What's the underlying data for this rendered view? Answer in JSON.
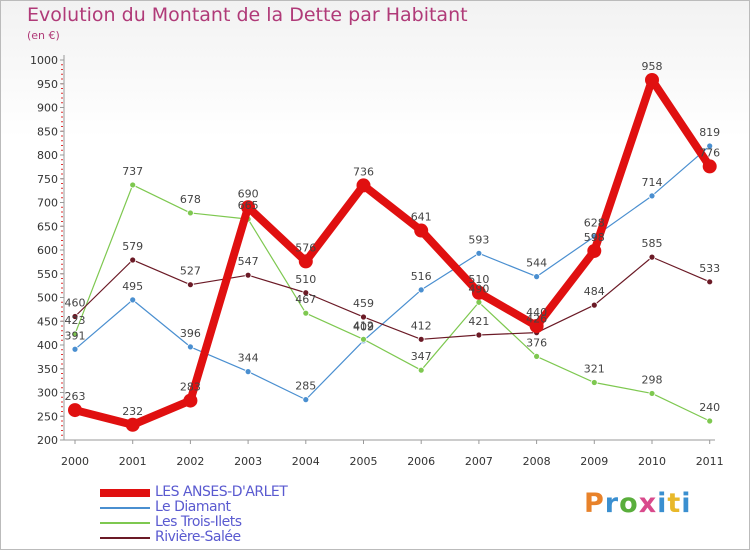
{
  "title": "Evolution du Montant de la Dette par Habitant",
  "subtitle": "(en €)",
  "logo_text": "Proxiti",
  "chart_data": {
    "type": "line",
    "title": "Evolution du Montant de la Dette par Habitant",
    "subtitle": "(en €)",
    "xlabel": "",
    "ylabel": "",
    "ylim": [
      200,
      1000
    ],
    "yticks": [
      200,
      250,
      300,
      350,
      400,
      450,
      500,
      550,
      600,
      650,
      700,
      750,
      800,
      850,
      900,
      950,
      1000
    ],
    "grid": false,
    "legend_position": "bottom-left",
    "categories": [
      "2000",
      "2001",
      "2002",
      "2003",
      "2004",
      "2005",
      "2006",
      "2007",
      "2008",
      "2009",
      "2010",
      "2011"
    ],
    "series": [
      {
        "name": "LES ANSES-D'ARLET",
        "color": "#e01010",
        "values": [
          263,
          232,
          283,
          690,
          576,
          736,
          641,
          510,
          440,
          598,
          958,
          776
        ]
      },
      {
        "name": "Le Diamant",
        "color": "#4a8fd0",
        "values": [
          391,
          495,
          396,
          344,
          285,
          409,
          516,
          593,
          544,
          628,
          714,
          819
        ]
      },
      {
        "name": "Les Trois-Ilets",
        "color": "#7ec850",
        "values": [
          423,
          737,
          678,
          665,
          467,
          412,
          347,
          490,
          376,
          321,
          298,
          240
        ]
      },
      {
        "name": "Rivière-Salée",
        "color": "#6b1a26",
        "values": [
          460,
          579,
          527,
          547,
          510,
          459,
          412,
          421,
          426,
          484,
          585,
          533
        ]
      }
    ]
  }
}
